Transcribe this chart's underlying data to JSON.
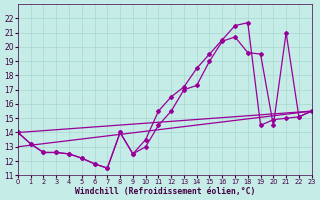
{
  "xlabel": "Windchill (Refroidissement éolien,°C)",
  "background_color": "#c5ece6",
  "grid_color": "#a8d8d0",
  "line_color": "#990099",
  "xlim": [
    0,
    23
  ],
  "ylim": [
    11,
    23
  ],
  "xticks": [
    0,
    1,
    2,
    3,
    4,
    5,
    6,
    7,
    8,
    9,
    10,
    11,
    12,
    13,
    14,
    15,
    16,
    17,
    18,
    19,
    20,
    21,
    22,
    23
  ],
  "yticks": [
    11,
    12,
    13,
    14,
    15,
    16,
    17,
    18,
    19,
    20,
    21,
    22
  ],
  "s1x": [
    0,
    1,
    2,
    3,
    4,
    5,
    6,
    7,
    8,
    9,
    10,
    11,
    12,
    13,
    14,
    15,
    16,
    17,
    18,
    19,
    20,
    21,
    22,
    23
  ],
  "s1y": [
    14.0,
    13.2,
    12.6,
    12.6,
    12.5,
    12.2,
    11.8,
    11.5,
    14.0,
    12.5,
    13.5,
    15.5,
    16.5,
    17.2,
    18.5,
    19.5,
    20.5,
    21.5,
    21.7,
    14.5,
    14.9,
    15.0,
    15.1,
    15.5
  ],
  "s2x": [
    0,
    1,
    2,
    3,
    4,
    5,
    6,
    7,
    8,
    9,
    10,
    11,
    12,
    13,
    14,
    15,
    16,
    17,
    18,
    19,
    20,
    21,
    22,
    23
  ],
  "s2y": [
    14.0,
    13.2,
    12.6,
    12.6,
    12.5,
    12.2,
    11.8,
    11.5,
    14.0,
    12.5,
    13.0,
    14.5,
    15.5,
    17.0,
    17.3,
    19.0,
    20.4,
    20.7,
    19.6,
    19.5,
    14.5,
    21.0,
    15.1,
    15.5
  ],
  "s3x": [
    0,
    23
  ],
  "s3y": [
    13.0,
    15.5
  ],
  "s4x": [
    0,
    23
  ],
  "s4y": [
    14.0,
    15.5
  ]
}
